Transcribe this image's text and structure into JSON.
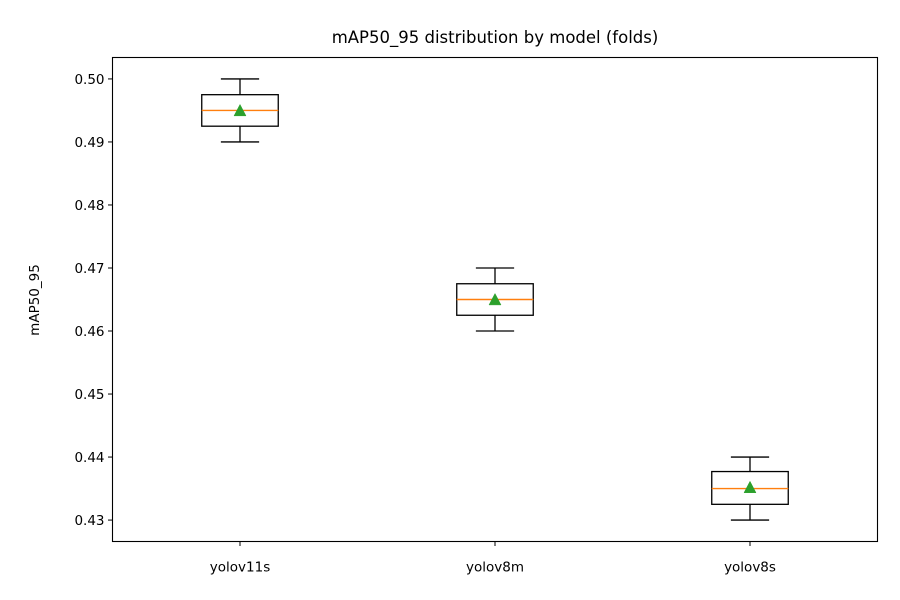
{
  "chart_data": {
    "type": "box",
    "title": "mAP50_95 distribution by model (folds)",
    "xlabel": "",
    "ylabel": "mAP50_95",
    "ylim": [
      0.4266,
      0.5034
    ],
    "yticks": [
      0.43,
      0.44,
      0.45,
      0.46,
      0.47,
      0.48,
      0.49,
      0.5
    ],
    "ytick_labels": [
      "0.43",
      "0.44",
      "0.45",
      "0.46",
      "0.47",
      "0.48",
      "0.49",
      "0.50"
    ],
    "grid": false,
    "show_means": true,
    "colors": {
      "box": "#000000",
      "median": "#ff7f0e",
      "mean_marker": "#2ca02c"
    },
    "categories": [
      "yolov11s",
      "yolov8m",
      "yolov8s"
    ],
    "boxes": [
      {
        "label": "yolov11s",
        "whisker_low": 0.49,
        "q1": 0.4925,
        "median": 0.495,
        "q3": 0.4975,
        "whisker_high": 0.5,
        "mean": 0.495
      },
      {
        "label": "yolov8m",
        "whisker_low": 0.46,
        "q1": 0.4625,
        "median": 0.465,
        "q3": 0.4675,
        "whisker_high": 0.47,
        "mean": 0.465
      },
      {
        "label": "yolov8s",
        "whisker_low": 0.43,
        "q1": 0.4325,
        "median": 0.435,
        "q3": 0.4377,
        "whisker_high": 0.44,
        "mean": 0.4352
      }
    ]
  }
}
